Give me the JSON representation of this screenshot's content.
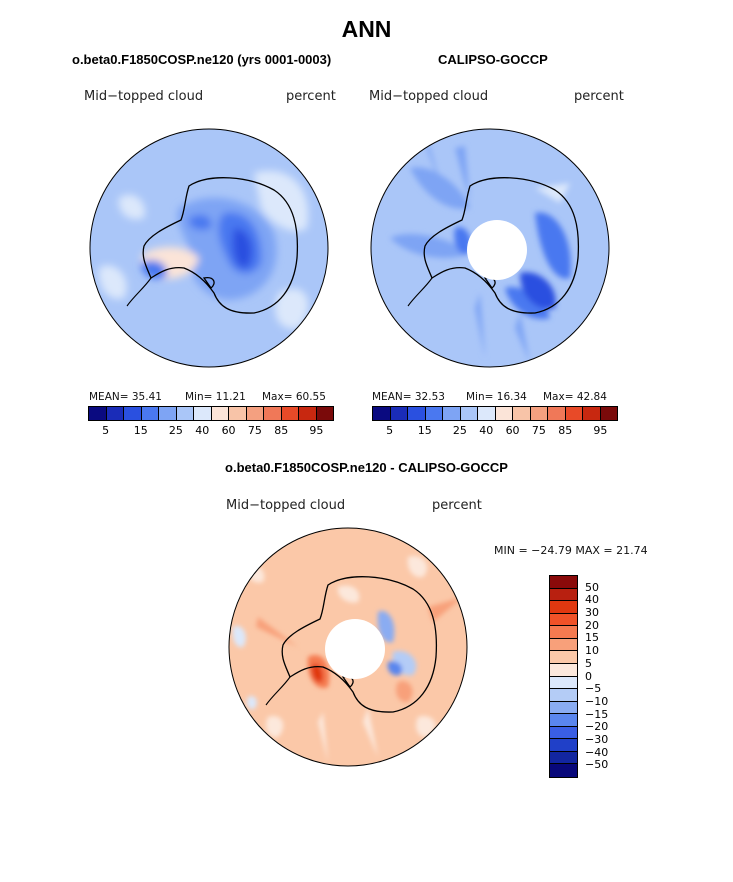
{
  "title": "ANN",
  "chart_data": [
    {
      "type": "heatmap",
      "projection": "south polar stereographic",
      "title": "o.beta0.F1850COSP.ne120 (yrs 0001-0003)",
      "left_label": "Mid−topped cloud",
      "right_label": "percent",
      "stats_text": {
        "mean": "MEAN=  35.41",
        "min": "Min=  11.21",
        "max": "Max=  60.55"
      },
      "stats": {
        "mean": 35.41,
        "min": 11.21,
        "max": 60.55
      },
      "colorbar_ticks": [
        "5",
        "15",
        "25",
        "40",
        "60",
        "75",
        "85",
        "95"
      ]
    },
    {
      "type": "heatmap",
      "projection": "south polar stereographic",
      "title": "CALIPSO-GOCCP",
      "left_label": "Mid−topped cloud",
      "right_label": "percent",
      "stats_text": {
        "mean": "MEAN=  32.53",
        "min": "Min=  16.34",
        "max": "Max=  42.84"
      },
      "stats": {
        "mean": 32.53,
        "min": 16.34,
        "max": 42.84
      },
      "colorbar_ticks": [
        "5",
        "15",
        "25",
        "40",
        "60",
        "75",
        "85",
        "95"
      ]
    },
    {
      "type": "heatmap",
      "projection": "south polar stereographic",
      "title": "o.beta0.F1850COSP.ne120 - CALIPSO-GOCCP",
      "left_label": "Mid−topped cloud",
      "right_label": "percent",
      "stats_text": "MIN = −24.79 MAX =  21.74",
      "stats": {
        "min": -24.79,
        "max": 21.74
      },
      "colorbar_ticks": [
        "50",
        "40",
        "30",
        "20",
        "15",
        "10",
        "5",
        "0",
        "−5",
        "−10",
        "−15",
        "−20",
        "−30",
        "−40",
        "−50"
      ]
    }
  ],
  "colors": {
    "abs_scale": [
      "#0a0a80",
      "#1a2cb8",
      "#2a50e0",
      "#4a78f0",
      "#7ea4f4",
      "#aac6f8",
      "#dce8fb",
      "#fbe4d8",
      "#f8c4a8",
      "#f4a080",
      "#f07858",
      "#e84a28",
      "#c82810",
      "#7a0a0a"
    ],
    "diff_scale": [
      "#8a0a0a",
      "#b82010",
      "#e03810",
      "#f05228",
      "#f57a50",
      "#f8a07a",
      "#fbc8a8",
      "#fce8dc",
      "#dce8fb",
      "#b4ccf6",
      "#8aacf2",
      "#5a86ee",
      "#3a5ee4",
      "#2040c8",
      "#1226a0",
      "#08087a"
    ],
    "coast": "#000000"
  }
}
